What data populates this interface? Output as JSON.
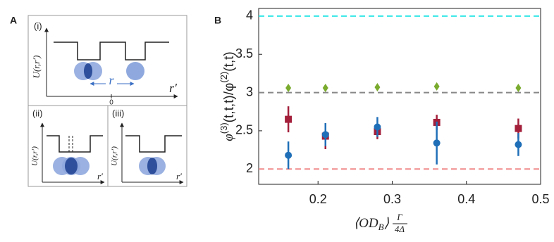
{
  "panel_a": {
    "label": "A",
    "subpanels": [
      {
        "label": "(i)",
        "ylabel": "U(r,r′)",
        "xlabel": "r′",
        "separation": "r",
        "origin": "0"
      },
      {
        "label": "(ii)",
        "ylabel": "U(r,r′)",
        "xlabel": "r′"
      },
      {
        "label": "(iii)",
        "ylabel": "U(r,r′)",
        "xlabel": "r′"
      }
    ]
  },
  "chart_data": {
    "type": "scatter",
    "panel_label": "B",
    "ylabel": {
      "phi": "φ",
      "sup1": "(3)",
      "mid": "(t,t,t)/φ",
      "sup2": "(2)",
      "end": "(t,t)"
    },
    "xlabel": {
      "open": "⟨OD",
      "sub": "B",
      "close": "⟩",
      "num": "Γ",
      "den": "4Δ"
    },
    "x": [
      0.16,
      0.21,
      0.28,
      0.36,
      0.47
    ],
    "series": [
      {
        "color": "#7aab2e",
        "marker": "diamond",
        "values": [
          3.06,
          3.06,
          3.07,
          3.08,
          3.06
        ]
      },
      {
        "color": "#a31f3a",
        "marker": "square",
        "values": [
          2.65,
          2.43,
          2.49,
          2.61,
          2.53
        ],
        "errors": [
          0.17,
          0.17,
          0.1,
          0.1,
          0.13
        ]
      },
      {
        "color": "#1f6fb8",
        "marker": "circle",
        "values": [
          2.18,
          2.45,
          2.55,
          2.34,
          2.32
        ],
        "errors": [
          0.18,
          0.15,
          0.13,
          0.28,
          0.15
        ]
      }
    ],
    "reference_lines": [
      {
        "value": 4,
        "color": "#33e6e6"
      },
      {
        "value": 3,
        "color": "#888888"
      },
      {
        "value": 2,
        "color": "#f08a8a"
      }
    ],
    "xlim": [
      0.12,
      0.5
    ],
    "ylim": [
      1.8,
      4.1
    ],
    "xticks": [
      0.2,
      0.3,
      0.4,
      0.5
    ],
    "yticks": [
      2,
      2.5,
      3,
      3.5,
      4
    ]
  }
}
